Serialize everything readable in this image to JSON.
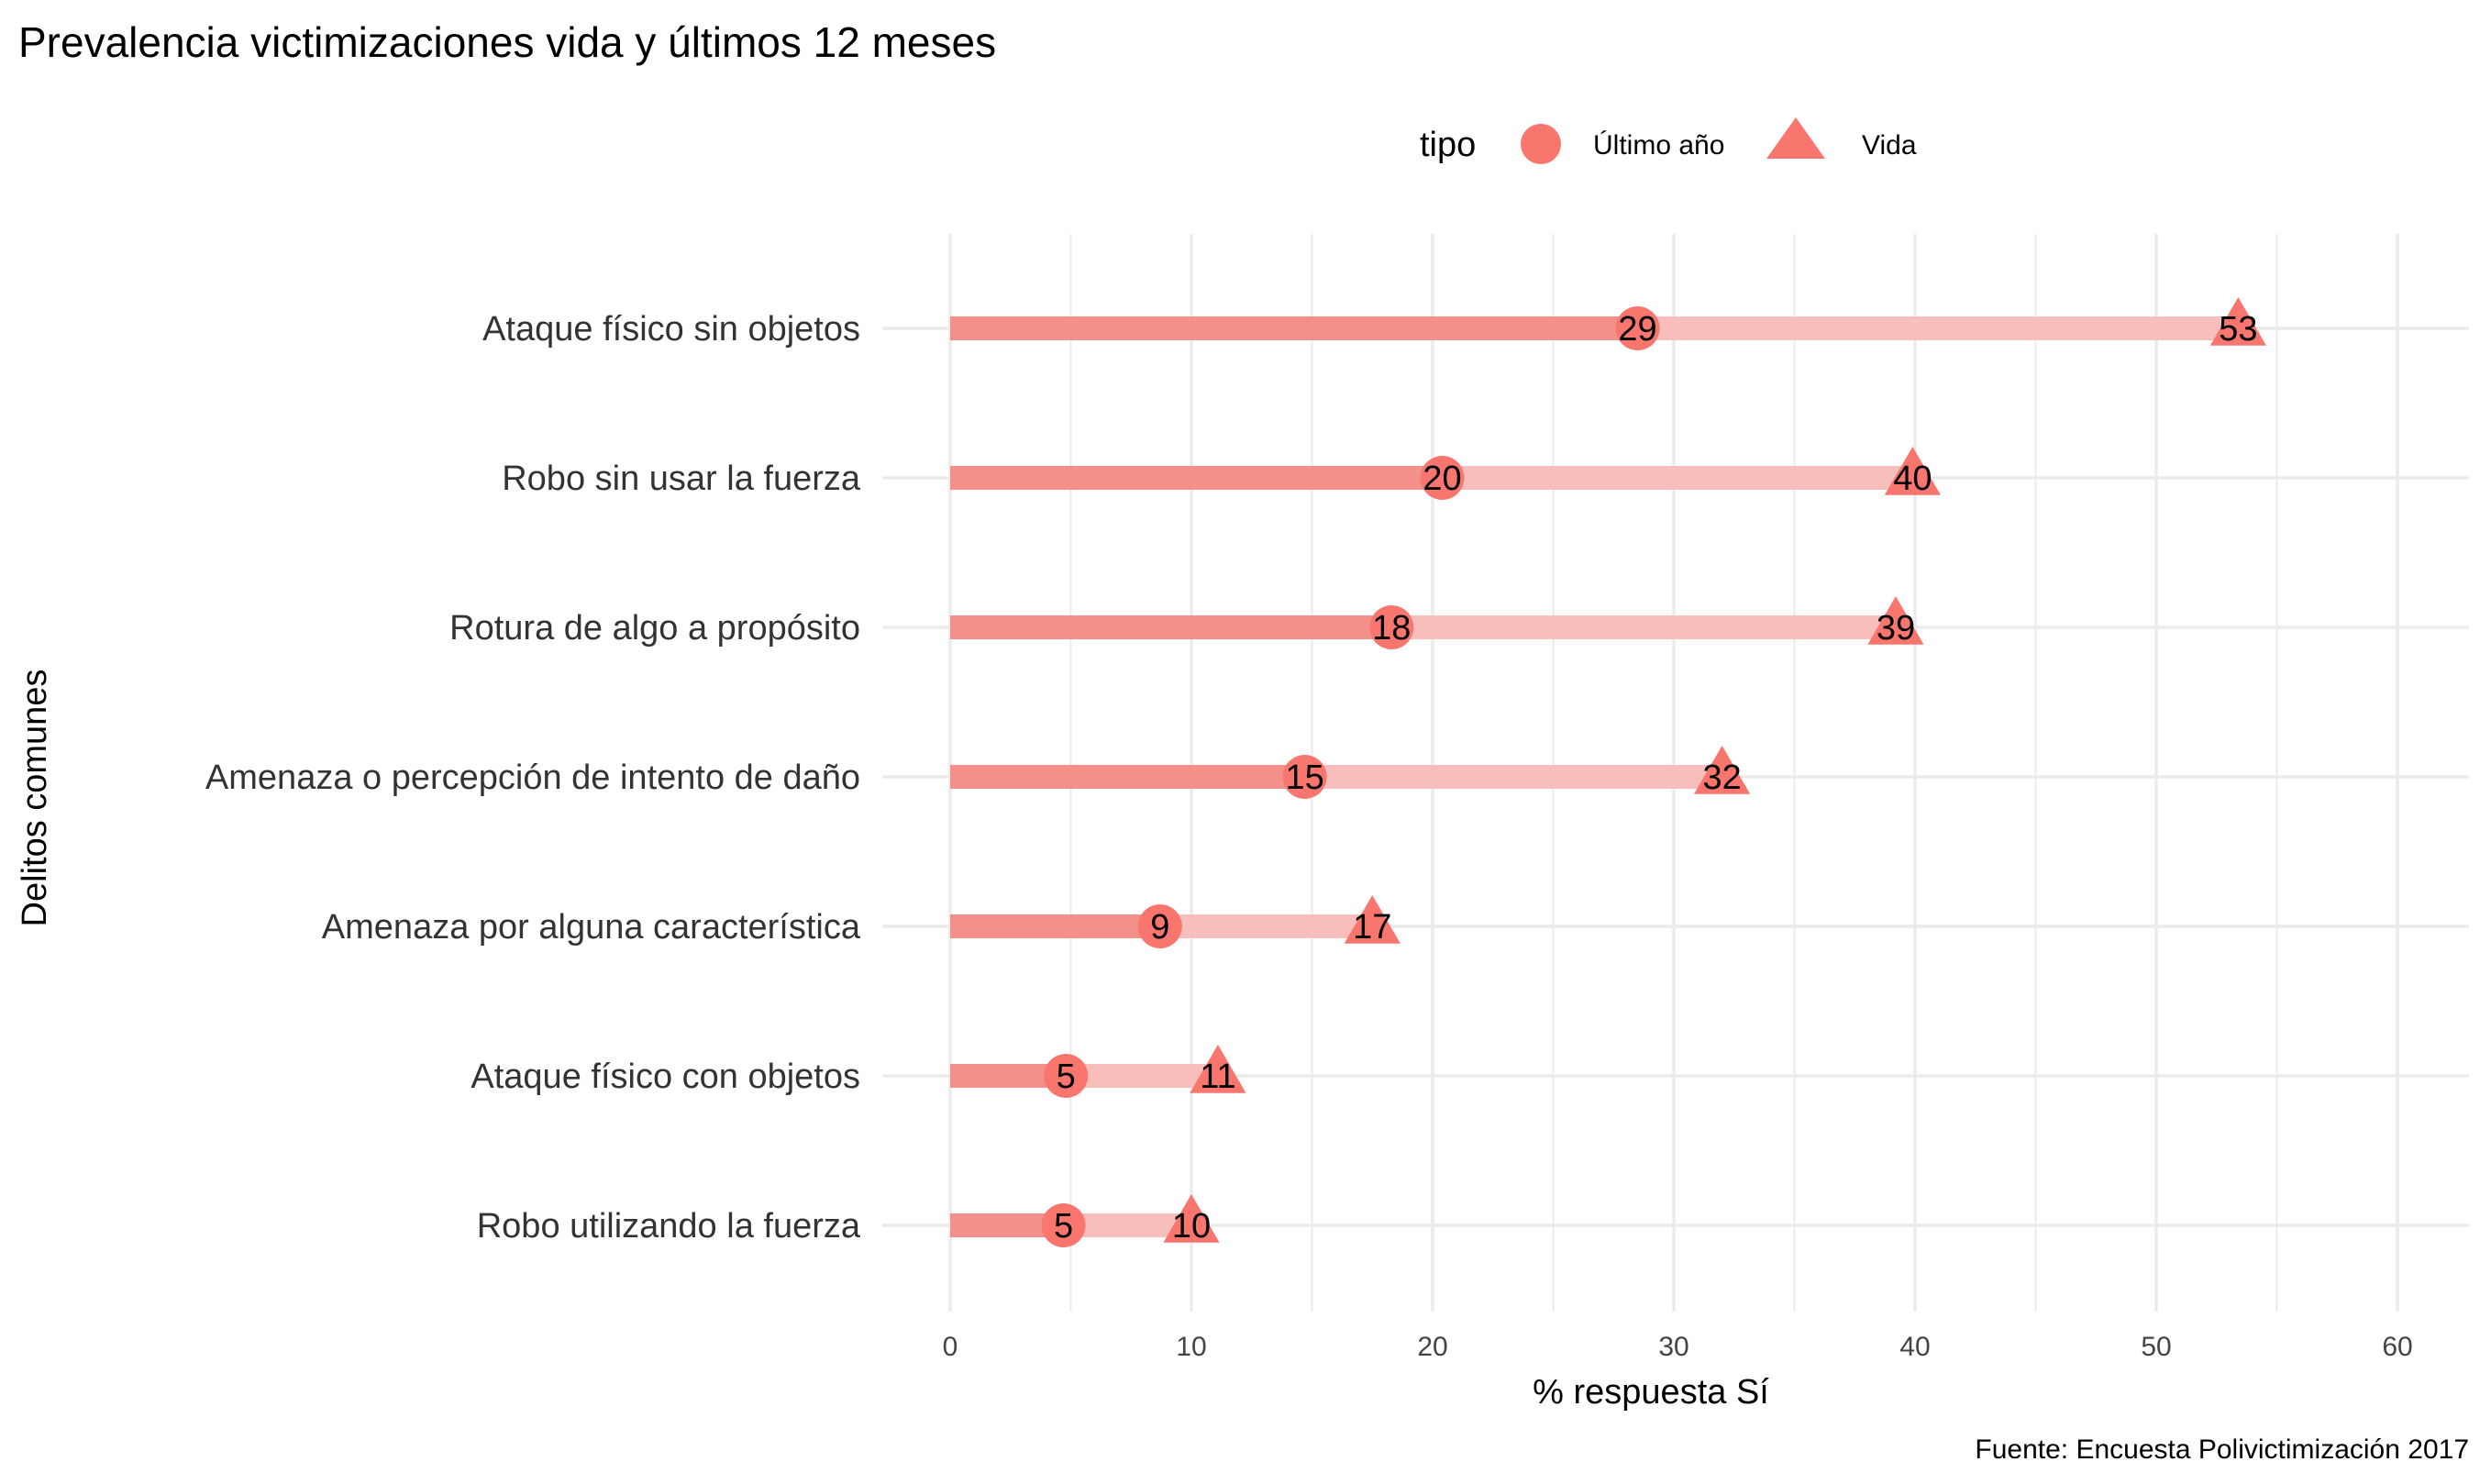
{
  "chart_data": {
    "type": "dot-range",
    "title": "Prevalencia victimizaciones vida y últimos 12 meses",
    "xlabel": "% respuesta Sí",
    "ylabel": "Delitos comunes",
    "caption": "Fuente: Encuesta Polivictimización 2017",
    "xlim": [
      0,
      60
    ],
    "xticks": [
      0,
      10,
      20,
      30,
      40,
      50,
      60
    ],
    "grid": true,
    "legend": {
      "title": "tipo",
      "position": "top",
      "entries": [
        {
          "label": "Último año",
          "shape": "circle"
        },
        {
          "label": "Vida",
          "shape": "triangle"
        }
      ]
    },
    "colors": {
      "marker": "#F8766D",
      "bar_year": "#F4908A",
      "bar_life": "#F7BEBB",
      "grid": "#EBEBEB"
    },
    "categories": [
      "Ataque físico sin objetos",
      "Robo sin usar la fuerza",
      "Rotura de algo a propósito",
      "Amenaza o percepción de intento de daño",
      "Amenaza por alguna característica",
      "Ataque físico con objetos",
      "Robo utilizando la fuerza"
    ],
    "series": [
      {
        "name": "Último año",
        "values": [
          28.5,
          20.4,
          18.3,
          14.7,
          8.7,
          4.8,
          4.7
        ],
        "labels": [
          "29",
          "20",
          "18",
          "15",
          "9",
          "5",
          "5"
        ]
      },
      {
        "name": "Vida",
        "values": [
          53.4,
          39.9,
          39.2,
          32.0,
          17.5,
          11.1,
          10.0
        ],
        "labels": [
          "53",
          "40",
          "39",
          "32",
          "17",
          "11",
          "10"
        ]
      }
    ]
  }
}
